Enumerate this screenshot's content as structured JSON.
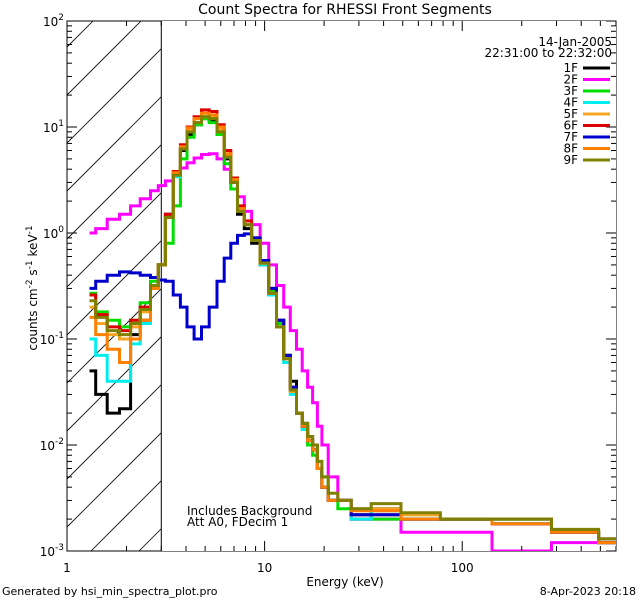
{
  "chart_data": {
    "type": "line",
    "title": "Count Spectra for RHESSI Front Segments",
    "xlabel": "Energy (keV)",
    "ylabel": "counts cm-2 s-1 keV-1",
    "ylabel_parts": {
      "base": "counts cm",
      "e1": "-2",
      "mid": " s",
      "e2": "-1",
      "end": " keV",
      "e3": "-1"
    },
    "xscale": "log",
    "yscale": "log",
    "xlim": [
      1,
      600
    ],
    "ylim": [
      0.001,
      100
    ],
    "x_ticks": [
      {
        "value": 1,
        "label": "1"
      },
      {
        "value": 10,
        "label": "10"
      },
      {
        "value": 100,
        "label": "100"
      }
    ],
    "y_ticks": [
      {
        "value": 100,
        "base": "10",
        "exp": "2"
      },
      {
        "value": 10,
        "base": "10",
        "exp": "1"
      },
      {
        "value": 1,
        "base": "10",
        "exp": "0"
      },
      {
        "value": 0.1,
        "base": "10",
        "exp": "-1"
      },
      {
        "value": 0.01,
        "base": "10",
        "exp": "-2"
      },
      {
        "value": 0.001,
        "base": "10",
        "exp": "-3"
      }
    ],
    "date": "14-Jan-2005",
    "time_range": "22:31:00 to 22:32:00",
    "annotations": [
      "Includes Background",
      "Att A0, FDecim 1"
    ],
    "hatched_region_keV": [
      1,
      3
    ],
    "series": [
      {
        "name": "1F",
        "color": "#000000",
        "x": [
          1.3,
          1.5,
          1.7,
          2.0,
          2.2,
          2.5,
          2.8,
          3.0,
          3.3,
          3.6,
          3.9,
          4.2,
          4.6,
          5.0,
          5.5,
          6.0,
          6.5,
          7.0,
          7.6,
          8.2,
          9.0,
          10,
          11,
          12,
          13,
          14,
          15,
          16,
          17,
          18,
          19,
          20,
          22,
          25,
          30,
          40,
          60,
          100,
          200,
          400,
          600
        ],
        "y": [
          0.05,
          0.03,
          0.02,
          0.022,
          0.11,
          0.15,
          0.3,
          0.5,
          1.5,
          3.5,
          6,
          8.5,
          10.5,
          12,
          11.5,
          9,
          5,
          3,
          1.5,
          1.1,
          0.8,
          0.5,
          0.28,
          0.15,
          0.07,
          0.04,
          0.02,
          0.016,
          0.012,
          0.01,
          0.006,
          0.004,
          0.003,
          0.003,
          0.002,
          0.0025,
          0.002,
          0.002,
          0.002,
          0.0015,
          0.0013
        ]
      },
      {
        "name": "2F",
        "color": "#ff00ff",
        "x": [
          1.3,
          1.5,
          1.7,
          2.0,
          2.2,
          2.5,
          2.8,
          3.0,
          3.3,
          3.6,
          3.9,
          4.2,
          4.6,
          5.0,
          5.5,
          6.0,
          6.5,
          7.0,
          7.6,
          8.2,
          9.0,
          10,
          11,
          12,
          13,
          14,
          15,
          16,
          17,
          18,
          19,
          20,
          22,
          25,
          30,
          40,
          60,
          100,
          200,
          400,
          600
        ],
        "y": [
          1.0,
          1.1,
          1.35,
          1.5,
          1.8,
          2.1,
          2.5,
          2.8,
          3.1,
          3.6,
          4.1,
          4.6,
          5.1,
          5.5,
          5.6,
          5.0,
          4.0,
          3.0,
          2.2,
          1.6,
          1.2,
          0.8,
          0.5,
          0.32,
          0.2,
          0.12,
          0.08,
          0.05,
          0.035,
          0.025,
          0.015,
          0.01,
          0.005,
          0.003,
          0.002,
          0.002,
          0.0015,
          0.0015,
          0.001,
          0.0012,
          0.0012
        ]
      },
      {
        "name": "3F",
        "color": "#00dd00",
        "x": [
          1.3,
          1.5,
          1.7,
          2.0,
          2.2,
          2.5,
          2.8,
          3.0,
          3.3,
          3.6,
          3.9,
          4.2,
          4.6,
          5.0,
          5.5,
          6.0,
          6.5,
          7.0,
          7.6,
          8.2,
          9.0,
          10,
          11,
          12,
          13,
          14,
          15,
          16,
          17,
          18,
          19,
          20,
          22,
          25,
          30,
          40,
          60,
          100,
          200,
          400,
          600
        ],
        "y": [
          0.27,
          0.18,
          0.15,
          0.13,
          0.15,
          0.22,
          0.35,
          0.5,
          0.8,
          1.8,
          5,
          8,
          10.5,
          12,
          11,
          8.5,
          4.5,
          2.6,
          1.6,
          1.2,
          0.9,
          0.52,
          0.28,
          0.14,
          0.07,
          0.035,
          0.02,
          0.015,
          0.01,
          0.008,
          0.006,
          0.005,
          0.003,
          0.0025,
          0.0022,
          0.002,
          0.0022,
          0.002,
          0.0018,
          0.0015,
          0.0012
        ]
      },
      {
        "name": "4F",
        "color": "#00eeee",
        "x": [
          1.3,
          1.5,
          1.7,
          2.0,
          2.2,
          2.5,
          2.8,
          3.0,
          3.3,
          3.6,
          3.9,
          4.2,
          4.6,
          5.0,
          5.5,
          6.0,
          6.5,
          7.0,
          7.6,
          8.2,
          9.0,
          10,
          11,
          12,
          13,
          14,
          15,
          16,
          17,
          18,
          19,
          20,
          22,
          25,
          30,
          40,
          60,
          100,
          200,
          400,
          600
        ],
        "y": [
          0.1,
          0.07,
          0.04,
          0.04,
          0.09,
          0.14,
          0.3,
          0.5,
          1.4,
          3.4,
          6.2,
          9,
          11,
          12.5,
          12,
          9.2,
          5.2,
          3.1,
          1.7,
          1.2,
          0.85,
          0.5,
          0.26,
          0.13,
          0.06,
          0.03,
          0.02,
          0.014,
          0.011,
          0.009,
          0.006,
          0.004,
          0.003,
          0.003,
          0.002,
          0.0024,
          0.002,
          0.002,
          0.002,
          0.0015,
          0.0012
        ]
      },
      {
        "name": "5F",
        "color": "#f5a623",
        "x": [
          1.3,
          1.5,
          1.7,
          2.0,
          2.2,
          2.5,
          2.8,
          3.0,
          3.3,
          3.6,
          3.9,
          4.2,
          4.6,
          5.0,
          5.5,
          6.0,
          6.5,
          7.0,
          7.6,
          8.2,
          9.0,
          10,
          11,
          12,
          13,
          14,
          15,
          16,
          17,
          18,
          19,
          20,
          22,
          25,
          30,
          40,
          60,
          100,
          200,
          400,
          600
        ],
        "y": [
          0.2,
          0.14,
          0.11,
          0.1,
          0.13,
          0.18,
          0.3,
          0.5,
          1.4,
          3.6,
          6.3,
          9.2,
          11,
          12.5,
          12.2,
          9.5,
          5.5,
          3.1,
          1.7,
          1.2,
          0.85,
          0.52,
          0.27,
          0.13,
          0.065,
          0.032,
          0.02,
          0.015,
          0.011,
          0.009,
          0.006,
          0.004,
          0.003,
          0.003,
          0.0025,
          0.0025,
          0.0022,
          0.002,
          0.002,
          0.0015,
          0.0012
        ]
      },
      {
        "name": "6F",
        "color": "#dd0000",
        "x": [
          1.3,
          1.5,
          1.7,
          2.0,
          2.2,
          2.5,
          2.8,
          3.0,
          3.3,
          3.6,
          3.9,
          4.2,
          4.6,
          5.0,
          5.5,
          6.0,
          6.5,
          7.0,
          7.6,
          8.2,
          9.0,
          10,
          11,
          12,
          13,
          14,
          15,
          16,
          17,
          18,
          19,
          20,
          22,
          25,
          30,
          40,
          60,
          100,
          200,
          400,
          600
        ],
        "y": [
          0.26,
          0.17,
          0.13,
          0.12,
          0.15,
          0.2,
          0.32,
          0.5,
          1.5,
          3.8,
          6.8,
          10,
          12.5,
          14.5,
          14,
          10.5,
          6,
          3.3,
          1.8,
          1.3,
          0.9,
          0.55,
          0.3,
          0.15,
          0.07,
          0.035,
          0.02,
          0.015,
          0.011,
          0.009,
          0.006,
          0.004,
          0.003,
          0.003,
          0.0022,
          0.0022,
          0.002,
          0.002,
          0.0018,
          0.0015,
          0.0012
        ]
      },
      {
        "name": "7F",
        "color": "#0000cc",
        "x": [
          1.3,
          1.5,
          1.7,
          2.0,
          2.2,
          2.5,
          2.8,
          3.0,
          3.3,
          3.6,
          3.9,
          4.2,
          4.6,
          5.0,
          5.5,
          6.0,
          6.5,
          7.0,
          7.6,
          8.2,
          9.0,
          10,
          11,
          12,
          13,
          14,
          15,
          16,
          17,
          18,
          19,
          20,
          22,
          25,
          30,
          40,
          60,
          100,
          200,
          400,
          600
        ],
        "y": [
          0.3,
          0.35,
          0.4,
          0.43,
          0.42,
          0.4,
          0.38,
          0.36,
          0.35,
          0.26,
          0.2,
          0.13,
          0.1,
          0.13,
          0.2,
          0.35,
          0.58,
          0.8,
          0.95,
          0.98,
          0.9,
          0.55,
          0.3,
          0.15,
          0.07,
          0.035,
          0.02,
          0.015,
          0.011,
          0.009,
          0.006,
          0.004,
          0.003,
          0.003,
          0.0022,
          0.0022,
          0.002,
          0.002,
          0.0018,
          0.0015,
          0.0012
        ]
      },
      {
        "name": "8F",
        "color": "#ff7f00",
        "x": [
          1.3,
          1.5,
          1.7,
          2.0,
          2.2,
          2.5,
          2.8,
          3.0,
          3.3,
          3.6,
          3.9,
          4.2,
          4.6,
          5.0,
          5.5,
          6.0,
          6.5,
          7.0,
          7.6,
          8.2,
          9.0,
          10,
          11,
          12,
          13,
          14,
          15,
          16,
          17,
          18,
          19,
          20,
          22,
          25,
          30,
          40,
          60,
          100,
          200,
          400,
          600
        ],
        "y": [
          0.16,
          0.11,
          0.08,
          0.06,
          0.1,
          0.15,
          0.3,
          0.5,
          1.4,
          3.7,
          6.5,
          9.8,
          12,
          13.5,
          13,
          10,
          5.6,
          3.2,
          1.7,
          1.2,
          0.85,
          0.52,
          0.27,
          0.13,
          0.065,
          0.033,
          0.02,
          0.015,
          0.011,
          0.009,
          0.006,
          0.004,
          0.003,
          0.003,
          0.0024,
          0.0024,
          0.002,
          0.002,
          0.0018,
          0.0015,
          0.0012
        ]
      },
      {
        "name": "9F",
        "color": "#808000",
        "x": [
          1.3,
          1.5,
          1.7,
          2.0,
          2.2,
          2.5,
          2.8,
          3.0,
          3.3,
          3.6,
          3.9,
          4.2,
          4.6,
          5.0,
          5.5,
          6.0,
          6.5,
          7.0,
          7.6,
          8.2,
          9.0,
          10,
          11,
          12,
          13,
          14,
          15,
          16,
          17,
          18,
          19,
          20,
          22,
          25,
          30,
          40,
          60,
          100,
          200,
          400,
          600
        ],
        "y": [
          0.23,
          0.16,
          0.12,
          0.11,
          0.14,
          0.19,
          0.32,
          0.5,
          1.4,
          3.5,
          6.2,
          9,
          11,
          12.5,
          12,
          9,
          5.2,
          3.0,
          1.6,
          1.2,
          0.85,
          0.52,
          0.27,
          0.13,
          0.065,
          0.033,
          0.02,
          0.016,
          0.012,
          0.01,
          0.007,
          0.005,
          0.0035,
          0.003,
          0.0025,
          0.0028,
          0.0023,
          0.002,
          0.002,
          0.0016,
          0.0013
        ]
      }
    ]
  },
  "footer": {
    "generated_by": "Generated by hsi_min_spectra_plot.pro",
    "timestamp": "8-Apr-2023 20:18"
  }
}
